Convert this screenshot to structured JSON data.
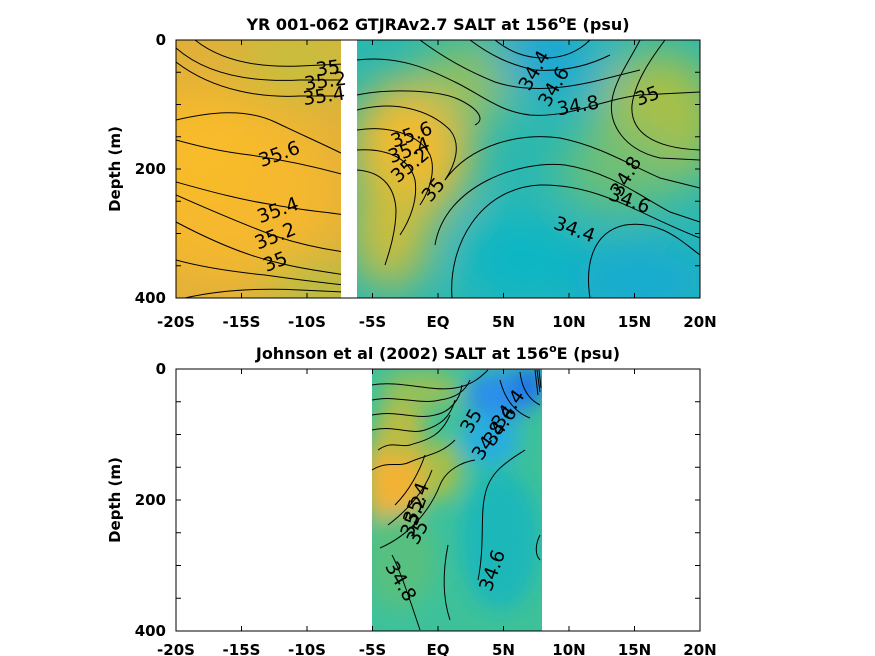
{
  "chart_data": [
    {
      "type": "heatmap",
      "title_prefix": "YR 001-062 GTJRAv2.7 SALT at 156",
      "title_sup": "o",
      "title_suffix": "E (psu)",
      "xlabel": "",
      "ylabel": "Depth (m)",
      "x_ticks": [
        "-20S",
        "-15S",
        "-10S",
        "-5S",
        "EQ",
        "5N",
        "10N",
        "15N",
        "20N"
      ],
      "x_tick_values": [
        -20,
        -15,
        -10,
        -5,
        0,
        5,
        10,
        15,
        20
      ],
      "y_ticks": [
        "0",
        "200",
        "400"
      ],
      "y_tick_values": [
        0,
        200,
        400
      ],
      "xlim": [
        -20,
        20
      ],
      "ylim": [
        0,
        400
      ],
      "y_reversed": true,
      "data_extent_x": [
        -20,
        20
      ],
      "gap_x": [
        -7.5,
        -6.8
      ],
      "colormap": "parula",
      "contour_labels": [
        {
          "text": "35",
          "x": -8.4,
          "y": 45
        },
        {
          "text": "35.2",
          "x": -8.6,
          "y": 65
        },
        {
          "text": "35.4",
          "x": -8.7,
          "y": 88
        },
        {
          "text": "35.6",
          "x": -12.1,
          "y": 178
        },
        {
          "text": "35.4",
          "x": -12.2,
          "y": 265
        },
        {
          "text": "35.2",
          "x": -12.4,
          "y": 305
        },
        {
          "text": "35",
          "x": -12.4,
          "y": 345
        },
        {
          "text": "35.6",
          "x": -2.0,
          "y": 148
        },
        {
          "text": "35.4",
          "x": -2.2,
          "y": 172
        },
        {
          "text": "35.2",
          "x": -2.1,
          "y": 195
        },
        {
          "text": "35",
          "x": -0.3,
          "y": 233
        },
        {
          "text": "34.4",
          "x": 7.4,
          "y": 48
        },
        {
          "text": "34.6",
          "x": 8.9,
          "y": 73
        },
        {
          "text": "34.8",
          "x": 10.7,
          "y": 103
        },
        {
          "text": "35",
          "x": 16.0,
          "y": 88
        },
        {
          "text": "34.8",
          "x": 14.4,
          "y": 212
        },
        {
          "text": "34.6",
          "x": 14.6,
          "y": 250
        },
        {
          "text": "34.4",
          "x": 10.4,
          "y": 295
        }
      ]
    },
    {
      "type": "heatmap",
      "title_prefix": "Johnson et al (2002) SALT at 156",
      "title_sup": "o",
      "title_suffix": "E (psu)",
      "xlabel": "",
      "ylabel": "Depth (m)",
      "x_ticks": [
        "-20S",
        "-15S",
        "-10S",
        "-5S",
        "EQ",
        "5N",
        "10N",
        "15N",
        "20N"
      ],
      "x_tick_values": [
        -20,
        -15,
        -10,
        -5,
        0,
        5,
        10,
        15,
        20
      ],
      "y_ticks": [
        "0",
        "200",
        "400"
      ],
      "y_tick_values": [
        0,
        200,
        400
      ],
      "xlim": [
        -20,
        20
      ],
      "ylim": [
        0,
        400
      ],
      "y_reversed": true,
      "data_extent_x": [
        -5,
        8
      ],
      "colormap": "parula",
      "contour_labels": [
        {
          "text": "34.4",
          "x": 5.4,
          "y": 62
        },
        {
          "text": "34.6",
          "x": 4.8,
          "y": 88
        },
        {
          "text": "34.8",
          "x": 3.9,
          "y": 110
        },
        {
          "text": "35",
          "x": 2.6,
          "y": 80
        },
        {
          "text": "35.4",
          "x": -1.6,
          "y": 205
        },
        {
          "text": "35.2",
          "x": -1.8,
          "y": 225
        },
        {
          "text": "35",
          "x": -1.5,
          "y": 250
        },
        {
          "text": "34.8",
          "x": -2.9,
          "y": 325
        },
        {
          "text": "34.6",
          "x": 4.2,
          "y": 308
        }
      ]
    }
  ]
}
